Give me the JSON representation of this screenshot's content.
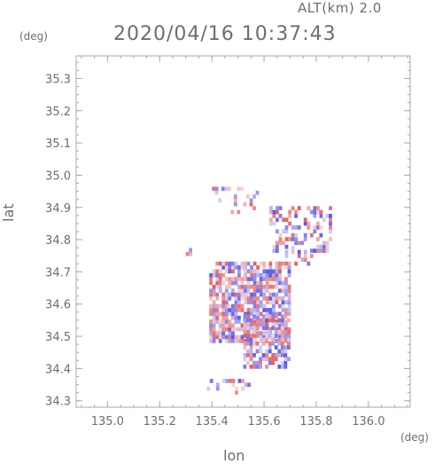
{
  "header": {
    "alt_label": "ALT(km) 2.0",
    "timestamp": "2020/04/16 10:37:43",
    "y_unit": "(deg)",
    "x_unit": "(deg)"
  },
  "chart_data": {
    "type": "heatmap",
    "title": "2020/04/16 10:37:43",
    "subtitle": "ALT(km) 2.0",
    "xlabel": "lon",
    "ylabel": "lat",
    "x_unit": "(deg)",
    "y_unit": "(deg)",
    "xlim": [
      134.88,
      136.16
    ],
    "ylim": [
      34.28,
      35.37
    ],
    "x_ticks": [
      "135.0",
      "135.2",
      "135.4",
      "135.6",
      "135.8",
      "136.0"
    ],
    "y_ticks": [
      "34.3",
      "34.4",
      "34.5",
      "34.6",
      "34.7",
      "34.8",
      "34.9",
      "35.0",
      "35.1",
      "35.2",
      "35.3"
    ],
    "grid": false,
    "colors": {
      "negative": "#5a5ae6",
      "positive": "#e65a5a",
      "axis": "#aaaaaa"
    },
    "clusters": [
      {
        "lon_range": [
          135.4,
          135.58
        ],
        "lat_range": [
          34.88,
          34.96
        ],
        "density": 0.25
      },
      {
        "lon_range": [
          135.62,
          135.86
        ],
        "lat_range": [
          34.76,
          34.9
        ],
        "density": 0.4
      },
      {
        "lon_range": [
          135.68,
          135.8
        ],
        "lat_range": [
          34.72,
          34.78
        ],
        "density": 0.3
      },
      {
        "lon_range": [
          135.39,
          135.7
        ],
        "lat_range": [
          34.48,
          34.73
        ],
        "density": 0.75
      },
      {
        "lon_range": [
          135.52,
          135.7
        ],
        "lat_range": [
          34.4,
          34.56
        ],
        "density": 0.65
      },
      {
        "lon_range": [
          135.38,
          135.55
        ],
        "lat_range": [
          34.32,
          34.36
        ],
        "density": 0.35
      },
      {
        "lon_range": [
          135.3,
          135.32
        ],
        "lat_range": [
          34.75,
          34.77
        ],
        "density": 0.5
      }
    ]
  }
}
